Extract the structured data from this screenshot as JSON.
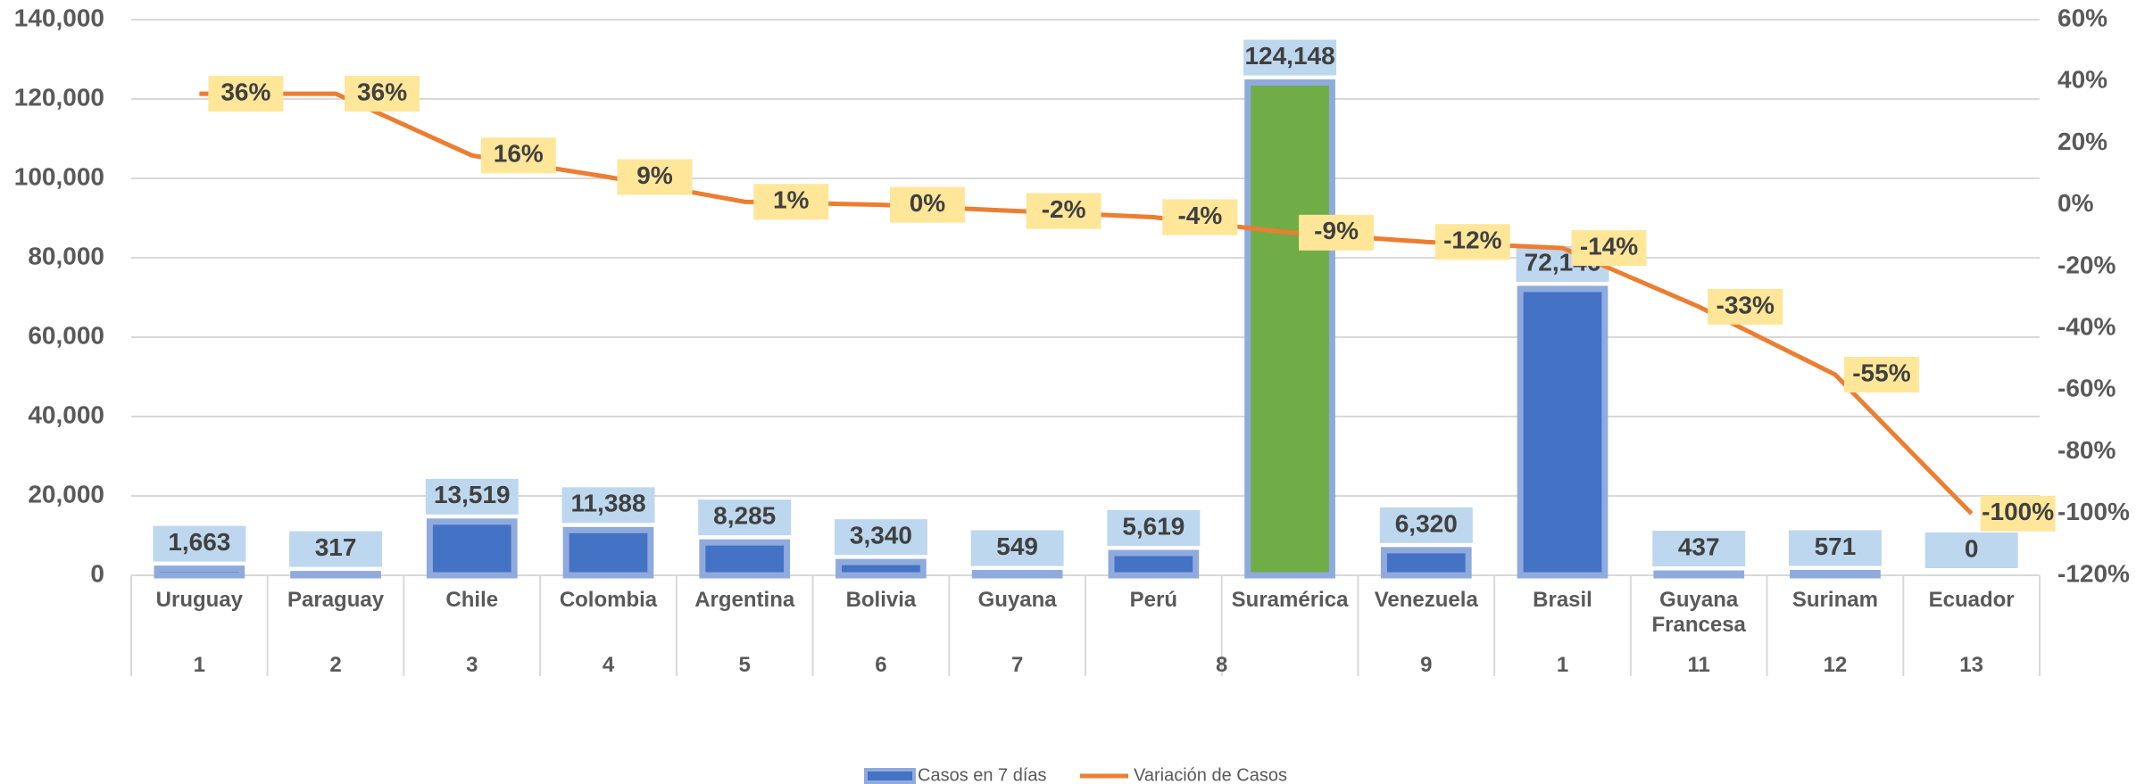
{
  "chart_data": {
    "type": "bar-line",
    "categories": [
      "Uruguay",
      "Paraguay",
      "Chile",
      "Colombia",
      "Argentina",
      "Bolivia",
      "Guyana",
      "Perú",
      "Suramérica",
      "Venezuela",
      "Brasil",
      "Guyana Francesa",
      "Surinam",
      "Ecuador"
    ],
    "groups": [
      {
        "label": "1",
        "size": 1
      },
      {
        "label": "2",
        "size": 1
      },
      {
        "label": "3",
        "size": 1
      },
      {
        "label": "4",
        "size": 1
      },
      {
        "label": "5",
        "size": 1
      },
      {
        "label": "6",
        "size": 1
      },
      {
        "label": "7",
        "size": 1
      },
      {
        "label": "8",
        "size": 2
      },
      {
        "label": "9",
        "size": 1
      },
      {
        "label": "1",
        "size": 1
      },
      {
        "label": "11",
        "size": 1
      },
      {
        "label": "12",
        "size": 1
      },
      {
        "label": "13",
        "size": 1
      }
    ],
    "series": [
      {
        "name": "Casos en 7 días",
        "type": "bar",
        "color": "#4472c4",
        "colors": [
          "#4472c4",
          "#4472c4",
          "#4472c4",
          "#4472c4",
          "#4472c4",
          "#4472c4",
          "#4472c4",
          "#4472c4",
          "#70ad47",
          "#4472c4",
          "#4472c4",
          "#4472c4",
          "#4472c4",
          "#4472c4"
        ],
        "values": [
          1663,
          317,
          13519,
          11388,
          8285,
          3340,
          549,
          5619,
          124148,
          6320,
          72146,
          437,
          571,
          0
        ],
        "value_labels": [
          "1,663",
          "317",
          "13,519",
          "11,388",
          "8,285",
          "3,340",
          "549",
          "5,619",
          "124,148",
          "6,320",
          "72,146",
          "437",
          "571",
          "0"
        ]
      },
      {
        "name": "Variación de Casos",
        "type": "line",
        "axis": "y2",
        "color": "#ed7d31",
        "values": [
          36,
          36,
          16,
          9,
          1,
          0,
          -2,
          -4,
          -9,
          -12,
          -14,
          -33,
          -55,
          -100
        ],
        "value_labels": [
          "36%",
          "36%",
          "16%",
          "9%",
          "1%",
          "0%",
          "-2%",
          "-4%",
          "-9%",
          "-12%",
          "-14%",
          "-33%",
          "-55%",
          "-100%"
        ]
      }
    ],
    "ylim": [
      0,
      140000
    ],
    "yticks": [
      0,
      {
        "value": 20000,
        "label": "20,000"
      },
      {
        "value": 40000,
        "label": "40,000"
      },
      {
        "value": 60000,
        "label": "60,000"
      },
      {
        "value": 80000,
        "label": "80,000"
      },
      {
        "value": 100000,
        "label": "100,000"
      },
      {
        "value": 120000,
        "label": "120,000"
      },
      {
        "value": 140000,
        "label": "140,000"
      }
    ],
    "y2lim": [
      -120,
      60
    ],
    "y2ticks": [
      {
        "value": -120,
        "label": "-120%"
      },
      {
        "value": -100,
        "label": "-100%"
      },
      {
        "value": -80,
        "label": "-80%"
      },
      {
        "value": -60,
        "label": "-60%"
      },
      {
        "value": -40,
        "label": "-40%"
      },
      {
        "value": -20,
        "label": "-20%"
      },
      {
        "value": 0,
        "label": "0%"
      },
      {
        "value": 20,
        "label": "20%"
      },
      {
        "value": 40,
        "label": "40%"
      },
      {
        "value": 60,
        "label": "60%"
      }
    ],
    "grid": true,
    "legend": "bottom"
  }
}
